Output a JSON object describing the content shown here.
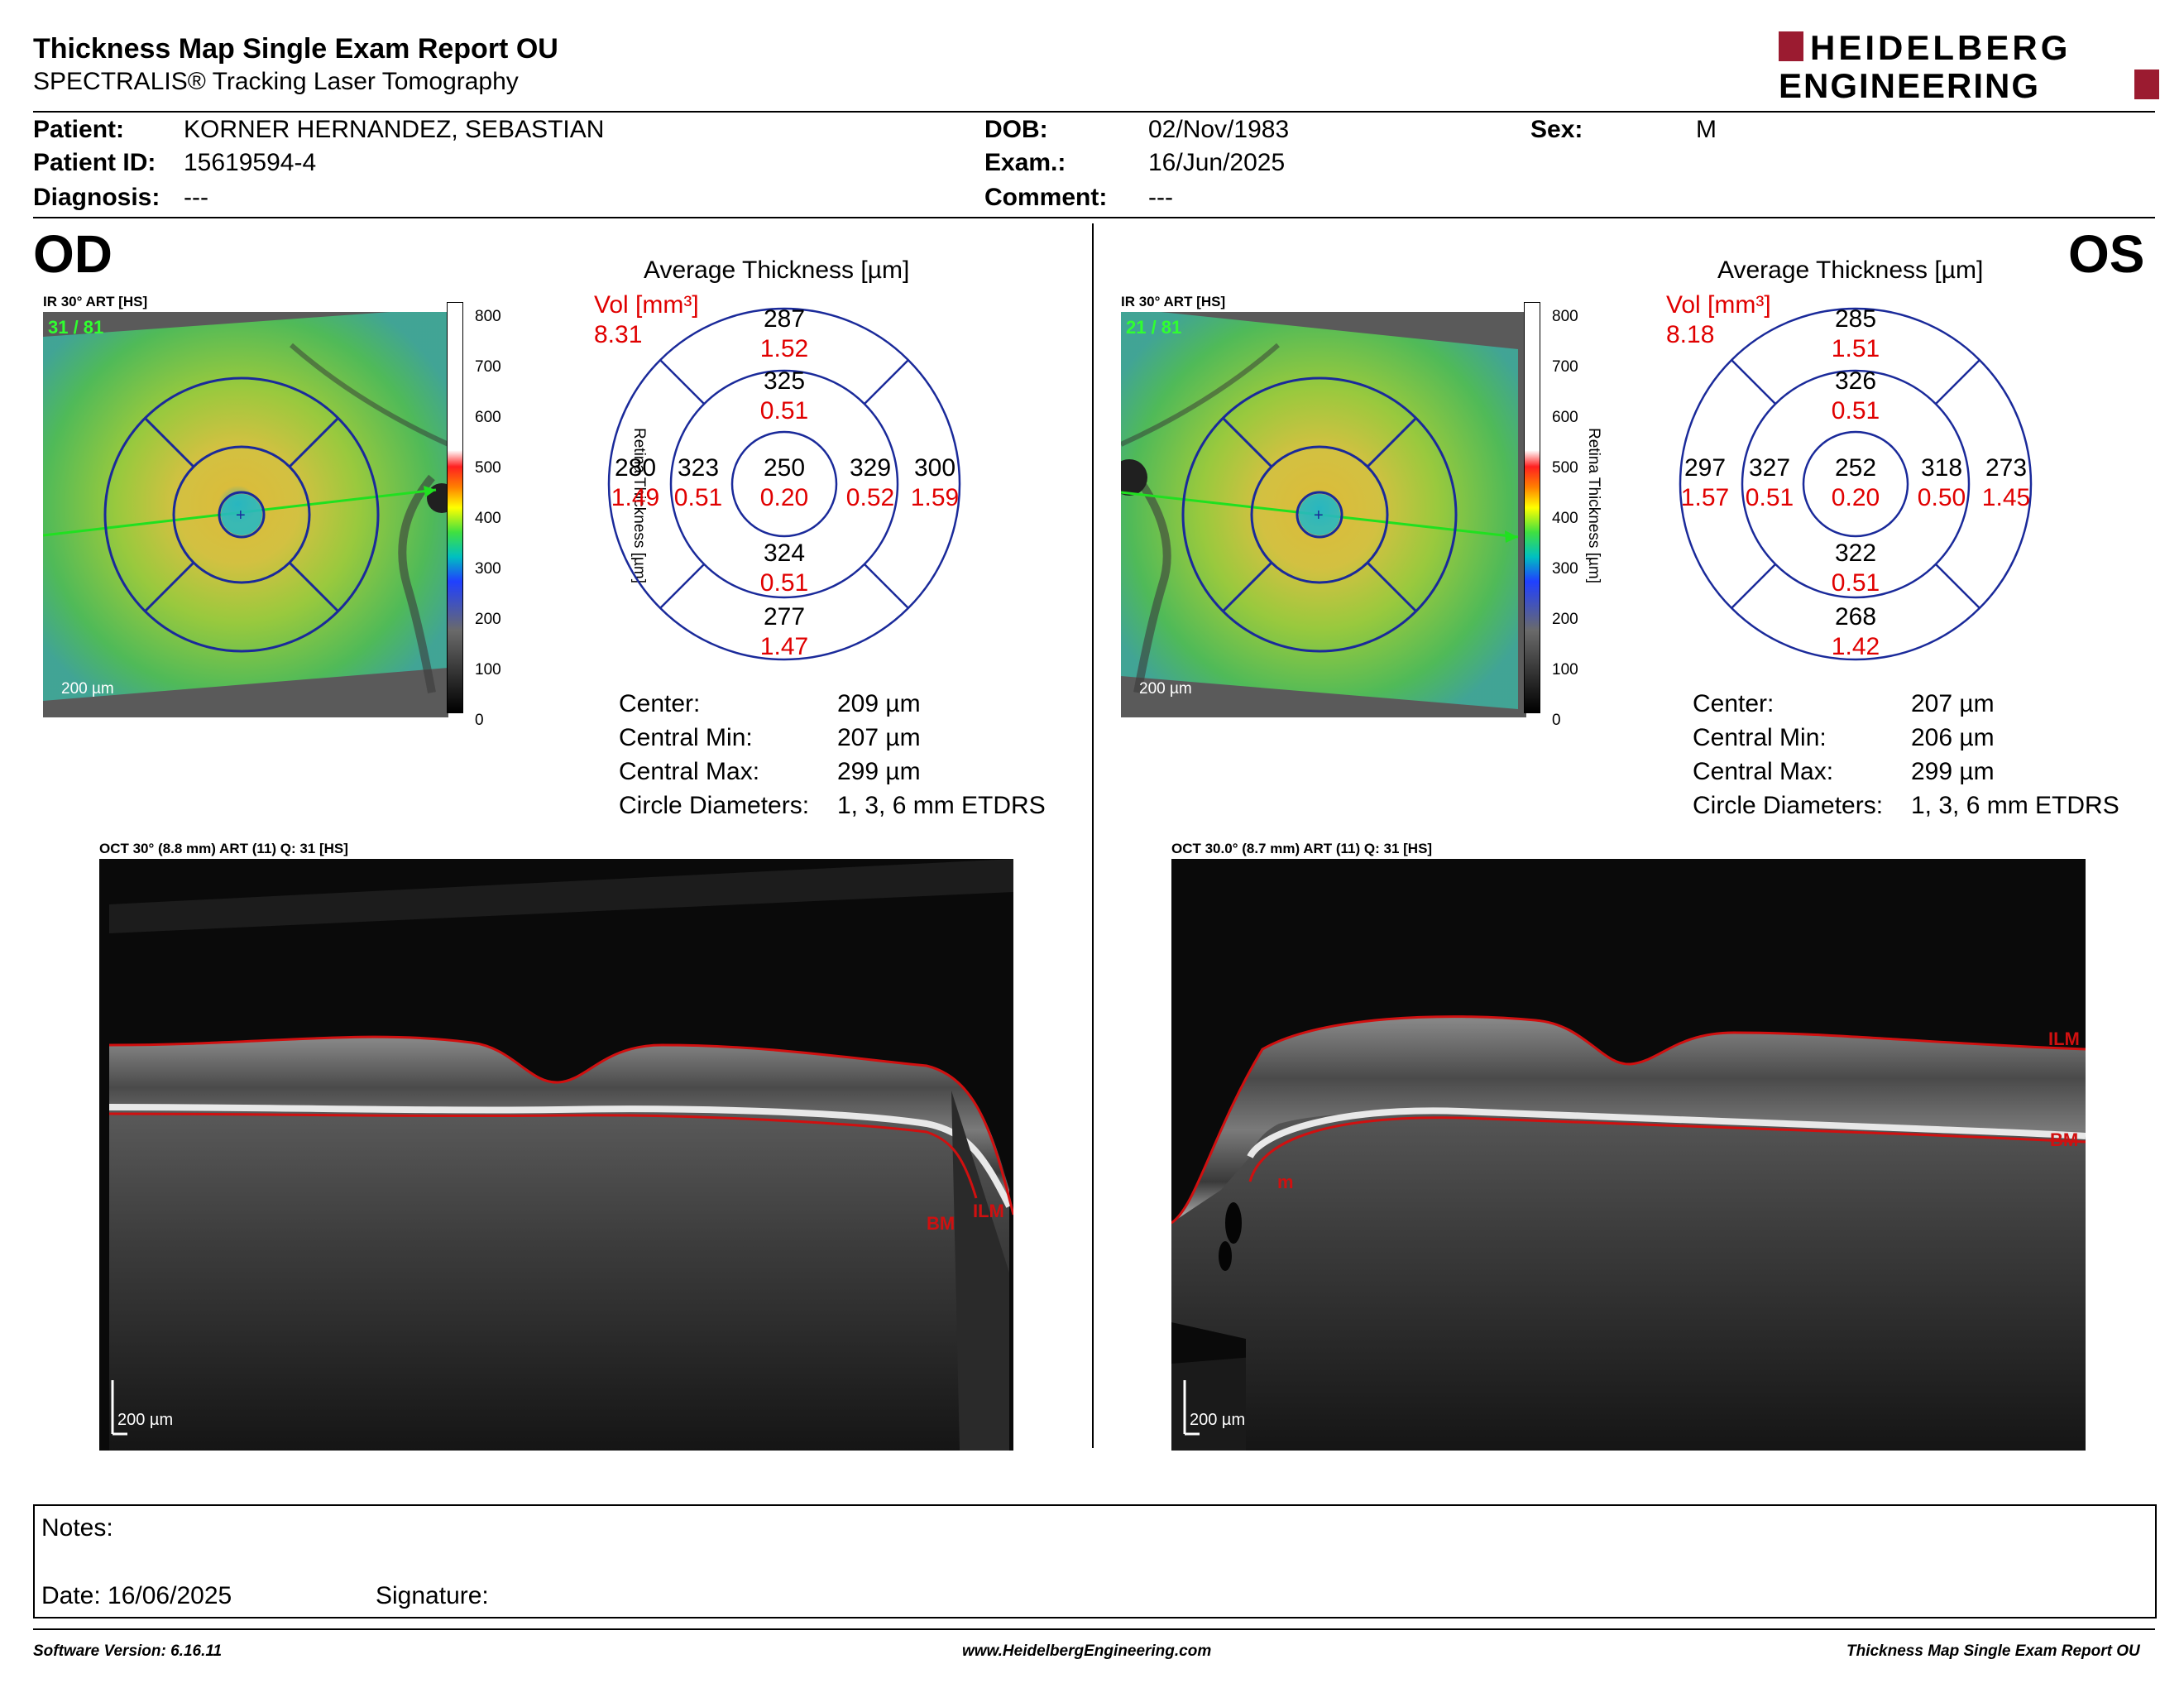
{
  "header": {
    "title": "Thickness Map Single Exam Report OU",
    "subtitle": "SPECTRALIS® Tracking Laser Tomography",
    "logo_line1": "HEIDELBERG",
    "logo_line2": "ENGINEERING",
    "logo_color": "#9b1b30"
  },
  "patient": {
    "patient_label": "Patient:",
    "patient_value": "KORNER HERNANDEZ, SEBASTIAN",
    "id_label": "Patient ID:",
    "id_value": "15619594-4",
    "diagnosis_label": "Diagnosis:",
    "diagnosis_value": "---",
    "dob_label": "DOB:",
    "dob_value": "02/Nov/1983",
    "exam_label": "Exam.:",
    "exam_value": "16/Jun/2025",
    "comment_label": "Comment:",
    "comment_value": "---",
    "sex_label": "Sex:",
    "sex_value": "M"
  },
  "od": {
    "eye": "OD",
    "fundus_caption": "IR 30° ART [HS]",
    "art_count": "31 / 81",
    "scale": "200 µm",
    "avg_title": "Average Thickness [µm]",
    "vol_label": "Vol [mm³]",
    "vol_total": "8.31",
    "sectors": {
      "outer_sup": {
        "t": "287",
        "v": "1.52"
      },
      "inner_sup": {
        "t": "325",
        "v": "0.51"
      },
      "outer_temp": {
        "t": "280",
        "v": "1.49"
      },
      "inner_temp": {
        "t": "323",
        "v": "0.51"
      },
      "center": {
        "t": "250",
        "v": "0.20"
      },
      "inner_nas": {
        "t": "329",
        "v": "0.52"
      },
      "outer_nas": {
        "t": "300",
        "v": "1.59"
      },
      "inner_inf": {
        "t": "324",
        "v": "0.51"
      },
      "outer_inf": {
        "t": "277",
        "v": "1.47"
      }
    },
    "stats": {
      "center_label": "Center:",
      "center_value": "209 µm",
      "min_label": "Central Min:",
      "min_value": "207 µm",
      "max_label": "Central Max:",
      "max_value": "299 µm",
      "diam_label": "Circle Diameters:",
      "diam_value": "1, 3, 6 mm ETDRS"
    },
    "oct_caption": "OCT 30° (8.8 mm) ART (11) Q: 31 [HS]",
    "oct_scale": "200 µm",
    "ilm": "ILM",
    "bm": "BM"
  },
  "os": {
    "eye": "OS",
    "fundus_caption": "IR 30° ART [HS]",
    "art_count": "21 / 81",
    "scale": "200 µm",
    "avg_title": "Average Thickness [µm]",
    "vol_label": "Vol [mm³]",
    "vol_total": "8.18",
    "sectors": {
      "outer_sup": {
        "t": "285",
        "v": "1.51"
      },
      "inner_sup": {
        "t": "326",
        "v": "0.51"
      },
      "outer_temp": {
        "t": "297",
        "v": "1.57"
      },
      "inner_temp": {
        "t": "327",
        "v": "0.51"
      },
      "center": {
        "t": "252",
        "v": "0.20"
      },
      "inner_nas": {
        "t": "318",
        "v": "0.50"
      },
      "outer_nas": {
        "t": "273",
        "v": "1.45"
      },
      "inner_inf": {
        "t": "322",
        "v": "0.51"
      },
      "outer_inf": {
        "t": "268",
        "v": "1.42"
      }
    },
    "stats": {
      "center_label": "Center:",
      "center_value": "207 µm",
      "min_label": "Central Min:",
      "min_value": "206 µm",
      "max_label": "Central Max:",
      "max_value": "299 µm",
      "diam_label": "Circle Diameters:",
      "diam_value": "1, 3, 6 mm ETDRS"
    },
    "oct_caption": "OCT 30.0° (8.7 mm) ART (11) Q: 31 [HS]",
    "oct_scale": "200 µm",
    "ilm": "ILM",
    "bm": "BM",
    "extra_label": "m"
  },
  "colorbar": {
    "ticks": [
      "800",
      "700",
      "600",
      "500",
      "400",
      "300",
      "200",
      "100",
      "0"
    ],
    "axis_label": "Retina  Thickness [µm]"
  },
  "notes": {
    "notes_label": "Notes:",
    "date_label": "Date: 16/06/2025",
    "signature_label": "Signature:"
  },
  "footer": {
    "software": "Software Version: 6.16.11",
    "website": "www.HeidelbergEngineering.com",
    "report": "Thickness Map Single Exam Report OU"
  },
  "colors": {
    "thickness_value": "#000000",
    "volume_value": "#e00000",
    "grid_blue": "#1a2a9a",
    "segmentation_red": "#d01010"
  }
}
